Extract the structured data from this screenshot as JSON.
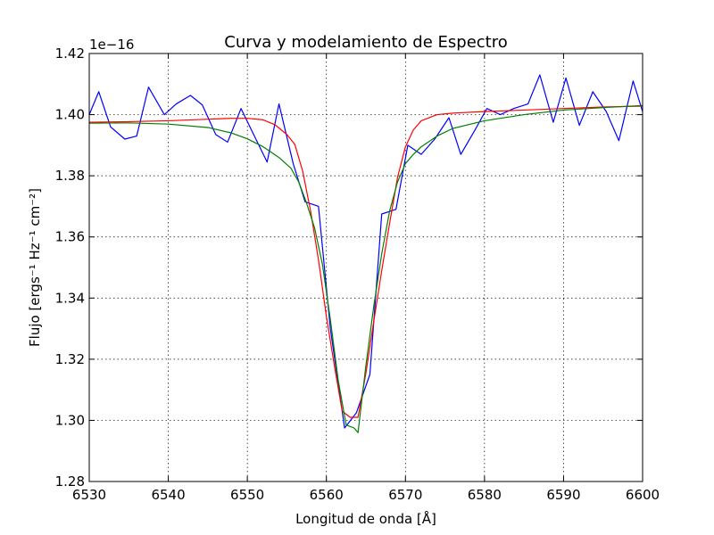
{
  "chart_data": {
    "type": "line",
    "title": "Curva y modelamiento de Espectro",
    "xlabel": "Longitud de onda [Å]",
    "ylabel": "Flujo [ergs⁻¹ Hz⁻¹ cm⁻²]",
    "y_offset_label": "1e−16",
    "xlim": [
      6530,
      6600
    ],
    "ylim": [
      1.28,
      1.42
    ],
    "grid": true,
    "x_ticks": [
      6530,
      6540,
      6550,
      6560,
      6570,
      6580,
      6590,
      6600
    ],
    "x_tick_labels": [
      "6530",
      "6540",
      "6550",
      "6560",
      "6570",
      "6580",
      "6590",
      "6600"
    ],
    "y_ticks": [
      1.28,
      1.3,
      1.32,
      1.34,
      1.36,
      1.38,
      1.4,
      1.42
    ],
    "y_tick_labels": [
      "1.28",
      "1.30",
      "1.32",
      "1.34",
      "1.36",
      "1.38",
      "1.40",
      "1.42"
    ],
    "series": [
      {
        "color": "#0000ff",
        "x": [
          6530,
          6531.2,
          6532.7,
          6534.5,
          6536,
          6537.5,
          6539.5,
          6541,
          6542.8,
          6544.3,
          6546,
          6547.5,
          6549.2,
          6550.7,
          6552.5,
          6554,
          6555.8,
          6557.3,
          6559,
          6560.5,
          6562.3,
          6563.8,
          6565.5,
          6567,
          6568.8,
          6570.3,
          6572,
          6573.7,
          6575.5,
          6577,
          6578.8,
          6580.3,
          6582,
          6583.7,
          6585.5,
          6587,
          6588.7,
          6590.3,
          6592,
          6593.7,
          6595.4,
          6597,
          6598.8,
          6600
        ],
        "y": [
          1.4,
          1.4075,
          1.396,
          1.392,
          1.393,
          1.409,
          1.4,
          1.4035,
          1.4063,
          1.4032,
          1.3935,
          1.391,
          1.402,
          1.394,
          1.3845,
          1.4035,
          1.384,
          1.3715,
          1.37,
          1.33,
          1.2975,
          1.3025,
          1.315,
          1.3675,
          1.369,
          1.39,
          1.387,
          1.392,
          1.399,
          1.387,
          1.395,
          1.402,
          1.4,
          1.402,
          1.4035,
          1.413,
          1.3975,
          1.412,
          1.3965,
          1.4075,
          1.401,
          1.3915,
          1.411,
          1.401
        ]
      },
      {
        "color": "#ff0000",
        "x": [
          6530,
          6535,
          6540,
          6545,
          6548,
          6550,
          6552,
          6553.5,
          6555,
          6556,
          6557,
          6558,
          6559,
          6560,
          6561,
          6562,
          6563,
          6564,
          6565,
          6566,
          6567,
          6568,
          6569,
          6570,
          6571,
          6572,
          6574,
          6576,
          6580,
          6585,
          6590,
          6595,
          6600
        ],
        "y": [
          1.3975,
          1.3977,
          1.398,
          1.3985,
          1.3988,
          1.3988,
          1.3983,
          1.3967,
          1.3935,
          1.3903,
          1.3815,
          1.3685,
          1.3525,
          1.334,
          1.318,
          1.303,
          1.301,
          1.301,
          1.3155,
          1.3325,
          1.349,
          1.3645,
          1.3795,
          1.3895,
          1.395,
          1.398,
          1.4,
          1.4005,
          1.401,
          1.4015,
          1.402,
          1.4025,
          1.4028
        ]
      },
      {
        "color": "#008000",
        "x": [
          6530,
          6535,
          6540,
          6545,
          6548,
          6550,
          6552,
          6554,
          6555.5,
          6556.5,
          6557.5,
          6558.5,
          6559.5,
          6560.5,
          6561.5,
          6562.5,
          6563.5,
          6564,
          6565,
          6566,
          6567,
          6568,
          6569,
          6570,
          6571,
          6572,
          6574,
          6576,
          6580,
          6585,
          6590,
          6595,
          6600
        ],
        "y": [
          1.3972,
          1.3973,
          1.3969,
          1.3958,
          1.394,
          1.3921,
          1.3895,
          1.386,
          1.3825,
          1.378,
          1.371,
          1.363,
          1.351,
          1.333,
          1.313,
          1.2985,
          1.2975,
          1.296,
          1.318,
          1.3375,
          1.3545,
          1.3685,
          1.378,
          1.384,
          1.387,
          1.3895,
          1.393,
          1.3955,
          1.398,
          1.4,
          1.4015,
          1.4023,
          1.403
        ]
      }
    ]
  }
}
